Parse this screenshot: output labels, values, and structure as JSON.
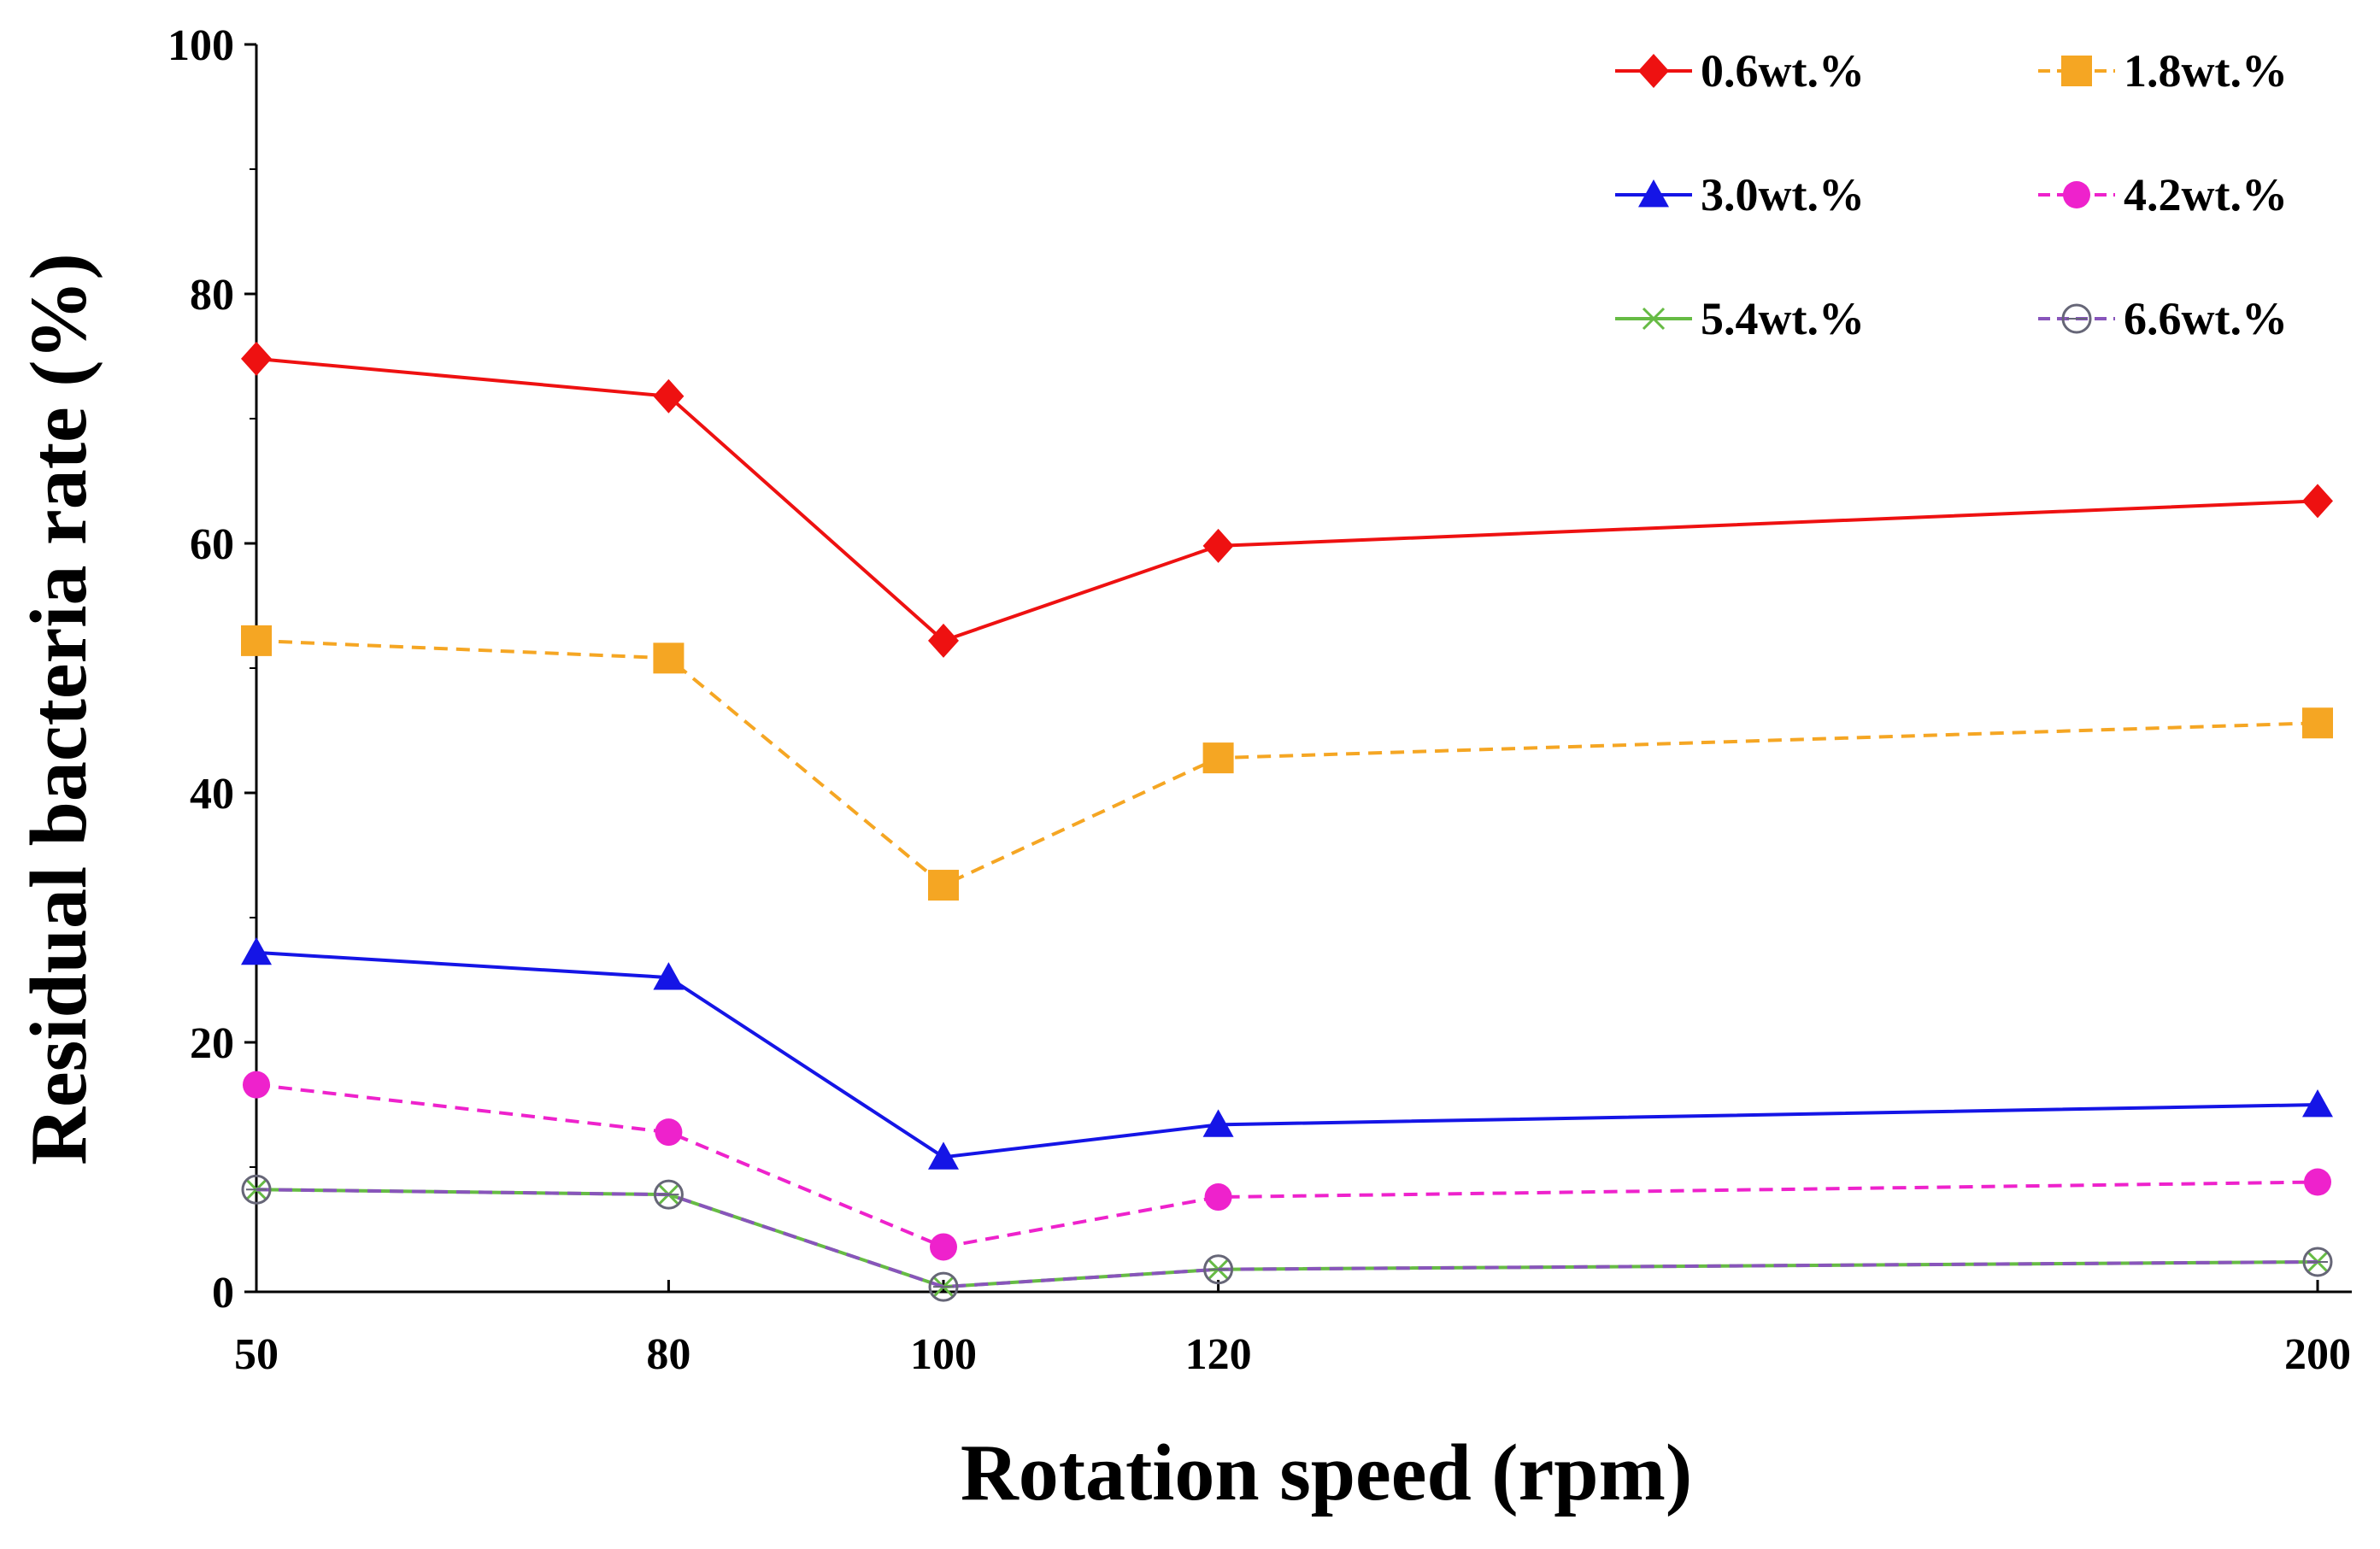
{
  "chart_data": {
    "type": "line",
    "title": "",
    "xlabel": "Rotation speed (rpm)",
    "ylabel": "Residual bacteria rate (%)",
    "x": [
      50,
      80,
      100,
      120,
      200
    ],
    "x_ticks": [
      "50",
      "80",
      "100",
      "120",
      "200"
    ],
    "ylim": [
      0,
      100
    ],
    "y_ticks": [
      "0",
      "20",
      "40",
      "60",
      "80",
      "100"
    ],
    "legend_position": "top-right",
    "series": [
      {
        "name": "0.6wt.%",
        "values": [
          74.8,
          71.8,
          52.2,
          59.8,
          63.4
        ],
        "color": "#ee1111",
        "marker": "diamond",
        "dash": "solid"
      },
      {
        "name": "1.8wt.%",
        "values": [
          52.2,
          50.8,
          32.6,
          42.8,
          45.6
        ],
        "color": "#f5a623",
        "marker": "square",
        "dash": "dashed"
      },
      {
        "name": "3.0wt.%",
        "values": [
          27.2,
          25.2,
          10.8,
          13.4,
          15.0
        ],
        "color": "#1515e6",
        "marker": "triangle",
        "dash": "solid"
      },
      {
        "name": "4.2wt.%",
        "values": [
          16.6,
          12.8,
          3.6,
          7.6,
          8.8
        ],
        "color": "#ee22cc",
        "marker": "circle",
        "dash": "dashed"
      },
      {
        "name": "5.4wt.%",
        "values": [
          8.2,
          7.8,
          0.4,
          1.8,
          2.4
        ],
        "color": "#66bb44",
        "marker": "x",
        "dash": "solid"
      },
      {
        "name": "6.6wt.%",
        "values": [
          8.2,
          7.8,
          0.4,
          1.8,
          2.4
        ],
        "color": "#8855bb",
        "marker": "open-circle",
        "dash": "dashed"
      }
    ]
  }
}
